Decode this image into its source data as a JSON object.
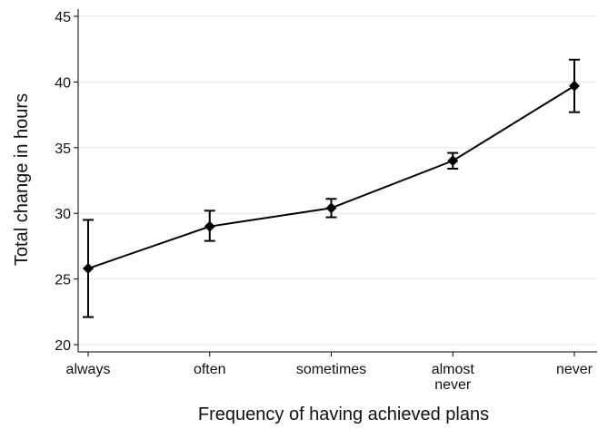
{
  "chart_data": {
    "type": "line",
    "xlabel": "Frequency of having achieved plans",
    "ylabel": "Total change in hours",
    "categories": [
      [
        "always"
      ],
      [
        "often"
      ],
      [
        "sometimes"
      ],
      [
        "almost",
        "never"
      ],
      [
        "never"
      ]
    ],
    "series": [
      {
        "values": [
          25.8,
          29.0,
          30.4,
          34.0,
          39.7
        ],
        "ci_low": [
          22.1,
          27.9,
          29.7,
          33.4,
          37.7
        ],
        "ci_high": [
          29.5,
          30.2,
          31.1,
          34.6,
          41.7
        ]
      }
    ],
    "ylim": [
      20,
      45
    ],
    "yticks": [
      20,
      25,
      30,
      35,
      40,
      45
    ],
    "grid": true,
    "legend": "none",
    "colors": {
      "line": "#000000",
      "grid": "#e6e6e6",
      "axis": "#000000"
    }
  }
}
